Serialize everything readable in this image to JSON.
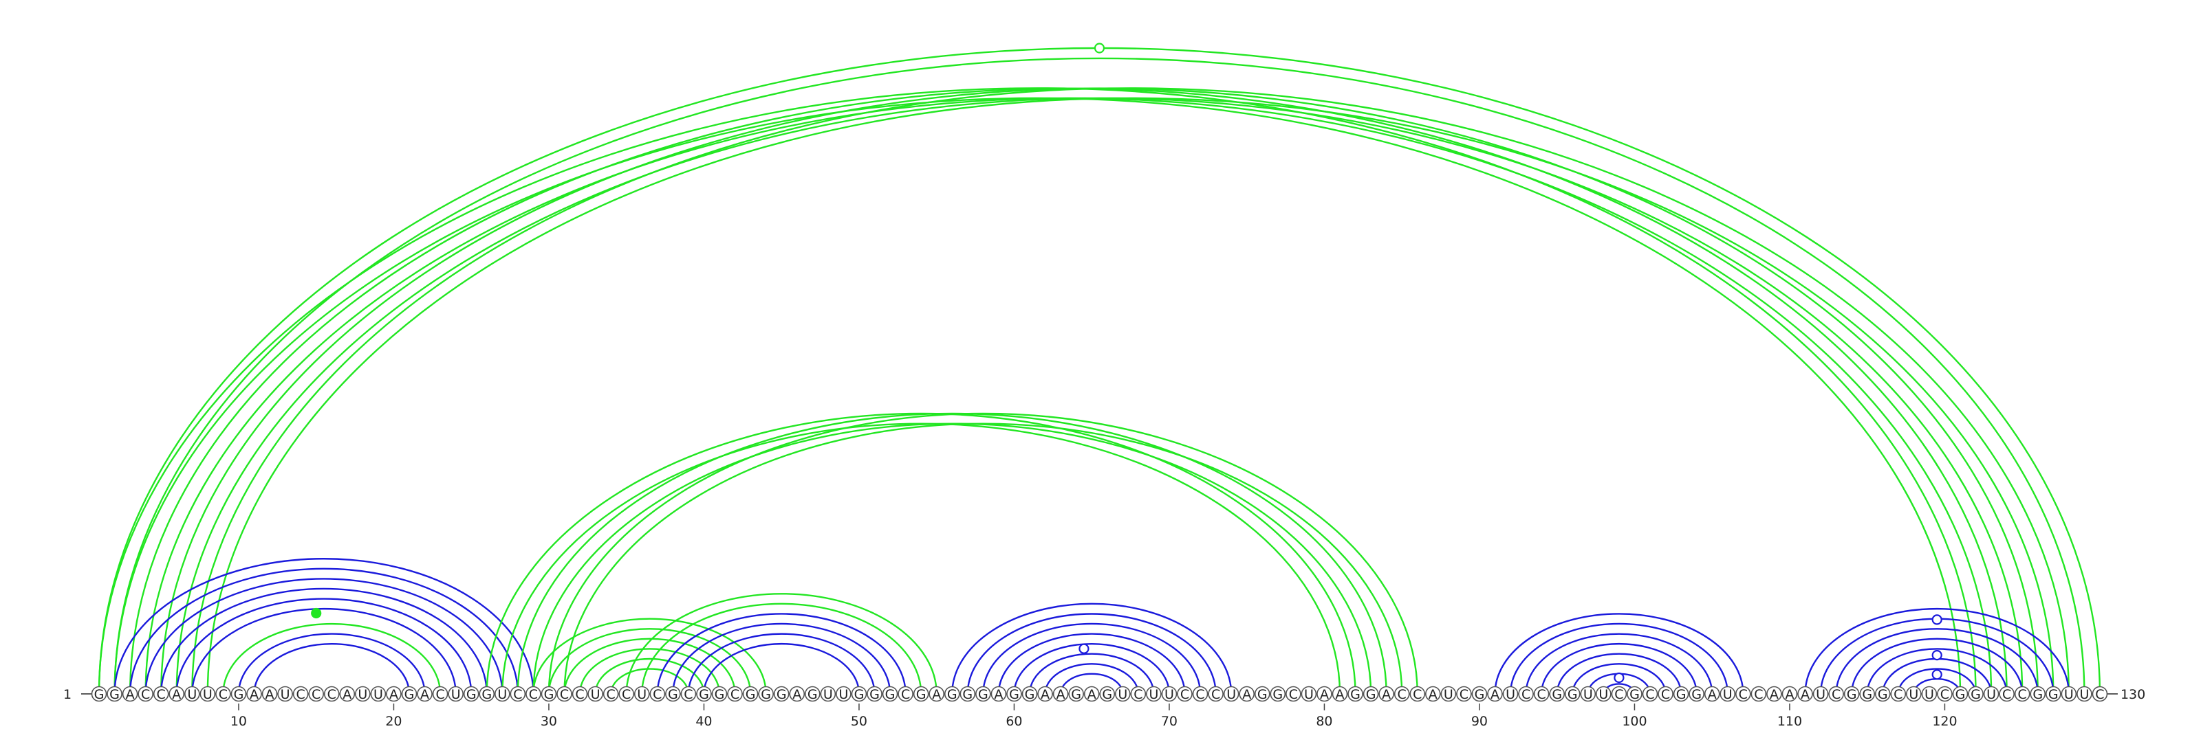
{
  "diagram": {
    "type": "rna-arc-diagram",
    "sequence": "GGACCAUUCGAAUCCCAUUAGACUGGUCCGCCUCCUCGCGGCGGGAGUUGGGCGAGGGAGGAAGAGUCUUCCCUAGGCUAAGGACCAUCGAUCCGGUUCGCCGGAUCCAAAUCGGGCUUCGGUCCGGUUC",
    "length": 130,
    "start_label": "1",
    "end_label": "130",
    "tick_labels": [
      "10",
      "20",
      "30",
      "40",
      "50",
      "60",
      "70",
      "80",
      "90",
      "100",
      "110",
      "120"
    ],
    "tick_positions": [
      10,
      20,
      30,
      40,
      50,
      60,
      70,
      80,
      90,
      100,
      110,
      120
    ],
    "colors": {
      "blue": "#1a1adc",
      "green": "#22e622",
      "line": "#444444"
    },
    "arcs": [
      {
        "i": 1,
        "j": 130,
        "color": "green"
      },
      {
        "i": 2,
        "j": 129,
        "color": "green"
      },
      {
        "i": 1,
        "j": 122,
        "color": "green"
      },
      {
        "i": 2,
        "j": 121,
        "color": "green"
      },
      {
        "i": 3,
        "j": 124,
        "color": "green"
      },
      {
        "i": 4,
        "j": 123,
        "color": "green"
      },
      {
        "i": 5,
        "j": 126,
        "color": "green"
      },
      {
        "i": 6,
        "j": 125,
        "color": "green"
      },
      {
        "i": 7,
        "j": 128,
        "color": "green"
      },
      {
        "i": 8,
        "j": 127,
        "color": "green"
      },
      {
        "i": 2,
        "j": 29,
        "color": "blue"
      },
      {
        "i": 3,
        "j": 28,
        "color": "blue"
      },
      {
        "i": 4,
        "j": 27,
        "color": "blue"
      },
      {
        "i": 5,
        "j": 26,
        "color": "blue"
      },
      {
        "i": 6,
        "j": 25,
        "color": "blue"
      },
      {
        "i": 7,
        "j": 24,
        "color": "blue"
      },
      {
        "i": 9,
        "j": 23,
        "color": "green"
      },
      {
        "i": 10,
        "j": 22,
        "color": "blue"
      },
      {
        "i": 11,
        "j": 21,
        "color": "blue"
      },
      {
        "i": 26,
        "j": 82,
        "color": "green"
      },
      {
        "i": 27,
        "j": 81,
        "color": "green"
      },
      {
        "i": 28,
        "j": 84,
        "color": "green"
      },
      {
        "i": 29,
        "j": 83,
        "color": "green"
      },
      {
        "i": 30,
        "j": 86,
        "color": "green"
      },
      {
        "i": 31,
        "j": 85,
        "color": "green"
      },
      {
        "i": 29,
        "j": 44,
        "color": "green"
      },
      {
        "i": 30,
        "j": 43,
        "color": "green"
      },
      {
        "i": 31,
        "j": 42,
        "color": "green"
      },
      {
        "i": 32,
        "j": 41,
        "color": "green"
      },
      {
        "i": 33,
        "j": 40,
        "color": "green"
      },
      {
        "i": 34,
        "j": 39,
        "color": "green"
      },
      {
        "i": 35,
        "j": 55,
        "color": "green"
      },
      {
        "i": 36,
        "j": 54,
        "color": "green"
      },
      {
        "i": 37,
        "j": 53,
        "color": "blue"
      },
      {
        "i": 38,
        "j": 52,
        "color": "blue"
      },
      {
        "i": 39,
        "j": 51,
        "color": "blue"
      },
      {
        "i": 40,
        "j": 50,
        "color": "blue"
      },
      {
        "i": 56,
        "j": 74,
        "color": "blue"
      },
      {
        "i": 57,
        "j": 73,
        "color": "blue"
      },
      {
        "i": 58,
        "j": 72,
        "color": "blue"
      },
      {
        "i": 59,
        "j": 71,
        "color": "blue"
      },
      {
        "i": 60,
        "j": 70,
        "color": "blue"
      },
      {
        "i": 61,
        "j": 69,
        "color": "blue"
      },
      {
        "i": 62,
        "j": 68,
        "color": "blue"
      },
      {
        "i": 63,
        "j": 67,
        "color": "blue"
      },
      {
        "i": 91,
        "j": 107,
        "color": "blue"
      },
      {
        "i": 92,
        "j": 106,
        "color": "blue"
      },
      {
        "i": 93,
        "j": 105,
        "color": "blue"
      },
      {
        "i": 94,
        "j": 104,
        "color": "blue"
      },
      {
        "i": 95,
        "j": 103,
        "color": "blue"
      },
      {
        "i": 96,
        "j": 102,
        "color": "blue"
      },
      {
        "i": 97,
        "j": 101,
        "color": "blue"
      },
      {
        "i": 98,
        "j": 100,
        "color": "blue"
      },
      {
        "i": 111,
        "j": 128,
        "color": "blue"
      },
      {
        "i": 112,
        "j": 127,
        "color": "blue"
      },
      {
        "i": 113,
        "j": 126,
        "color": "blue"
      },
      {
        "i": 114,
        "j": 125,
        "color": "blue"
      },
      {
        "i": 115,
        "j": 124,
        "color": "blue"
      },
      {
        "i": 116,
        "j": 123,
        "color": "blue"
      },
      {
        "i": 117,
        "j": 122,
        "color": "blue"
      },
      {
        "i": 118,
        "j": 121,
        "color": "blue"
      }
    ],
    "markers": [
      {
        "at": 65.5,
        "level": 1.0,
        "fill": "white",
        "color": "green"
      },
      {
        "at": 15,
        "level": 0.125,
        "fill": "solid",
        "color": "green"
      },
      {
        "at": 64.5,
        "level": 0.07,
        "fill": "white",
        "color": "blue"
      },
      {
        "at": 99,
        "level": 0.025,
        "fill": "white",
        "color": "blue"
      },
      {
        "at": 119.5,
        "level": 0.115,
        "fill": "white",
        "color": "blue"
      },
      {
        "at": 119.5,
        "level": 0.06,
        "fill": "white",
        "color": "blue"
      },
      {
        "at": 119.5,
        "level": 0.03,
        "fill": "white",
        "color": "blue"
      }
    ]
  }
}
